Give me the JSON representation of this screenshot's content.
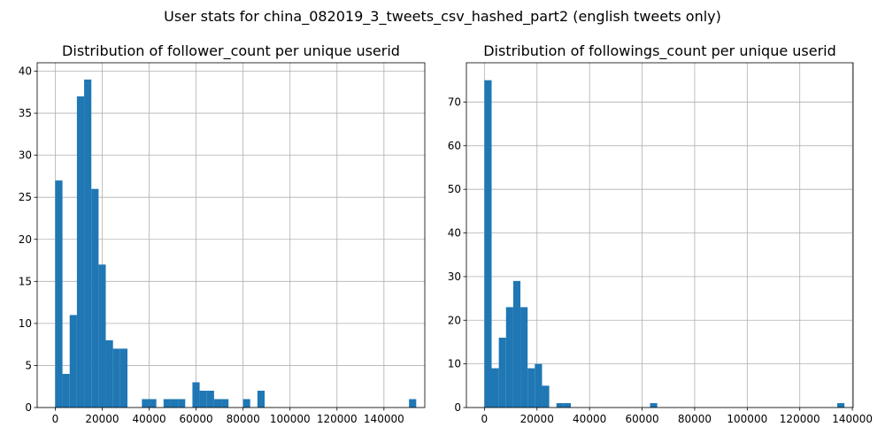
{
  "figure": {
    "suptitle": "User stats for china_082019_3_tweets_csv_hashed_part2 (english tweets only)"
  },
  "chart_data": [
    {
      "type": "bar",
      "title": "Distribution of follower_count per unique userid",
      "xlabel": "",
      "ylabel": "",
      "grid": true,
      "color": "#1f77b4",
      "bin_width": 3075,
      "xlim": [
        -7700,
        157400
      ],
      "ylim": [
        0,
        41
      ],
      "xticks": [
        0,
        20000,
        40000,
        60000,
        80000,
        100000,
        120000,
        140000
      ],
      "yticks": [
        0,
        5,
        10,
        15,
        20,
        25,
        30,
        35,
        40
      ],
      "bins": [
        {
          "x0": 0,
          "count": 27
        },
        {
          "x0": 3075,
          "count": 4
        },
        {
          "x0": 6150,
          "count": 11
        },
        {
          "x0": 9225,
          "count": 37
        },
        {
          "x0": 12300,
          "count": 39
        },
        {
          "x0": 15375,
          "count": 26
        },
        {
          "x0": 18450,
          "count": 17
        },
        {
          "x0": 21525,
          "count": 8
        },
        {
          "x0": 24600,
          "count": 7
        },
        {
          "x0": 27675,
          "count": 7
        },
        {
          "x0": 36900,
          "count": 1
        },
        {
          "x0": 39975,
          "count": 1
        },
        {
          "x0": 46125,
          "count": 1
        },
        {
          "x0": 49200,
          "count": 1
        },
        {
          "x0": 52275,
          "count": 1
        },
        {
          "x0": 58425,
          "count": 3
        },
        {
          "x0": 61500,
          "count": 2
        },
        {
          "x0": 64575,
          "count": 2
        },
        {
          "x0": 67650,
          "count": 1
        },
        {
          "x0": 70725,
          "count": 1
        },
        {
          "x0": 79950,
          "count": 1
        },
        {
          "x0": 86100,
          "count": 2
        },
        {
          "x0": 150675,
          "count": 1
        }
      ]
    },
    {
      "type": "bar",
      "title": "Distribution of followings_count per unique userid",
      "xlabel": "",
      "ylabel": "",
      "grid": true,
      "color": "#1f77b4",
      "bin_width": 2740,
      "xlim": [
        -6860,
        140300
      ],
      "ylim": [
        0,
        79
      ],
      "xticks": [
        0,
        20000,
        40000,
        60000,
        80000,
        100000,
        120000,
        140000
      ],
      "yticks": [
        0,
        10,
        20,
        30,
        40,
        50,
        60,
        70
      ],
      "bins": [
        {
          "x0": 0,
          "count": 75
        },
        {
          "x0": 2740,
          "count": 9
        },
        {
          "x0": 5480,
          "count": 16
        },
        {
          "x0": 8220,
          "count": 23
        },
        {
          "x0": 10960,
          "count": 29
        },
        {
          "x0": 13700,
          "count": 23
        },
        {
          "x0": 16440,
          "count": 9
        },
        {
          "x0": 19180,
          "count": 10
        },
        {
          "x0": 21920,
          "count": 5
        },
        {
          "x0": 27400,
          "count": 1
        },
        {
          "x0": 30140,
          "count": 1
        },
        {
          "x0": 63020,
          "count": 1
        },
        {
          "x0": 134260,
          "count": 1
        }
      ]
    }
  ]
}
